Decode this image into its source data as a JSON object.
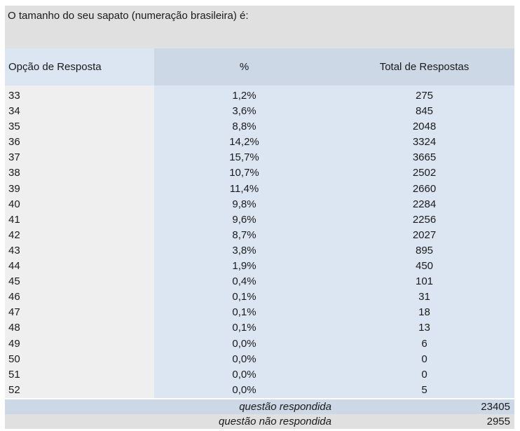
{
  "question": "O tamanho do seu sapato (numeração brasileira) é:",
  "headers": {
    "option": "Opção de Resposta",
    "percent": "%",
    "total": "Total de Respostas"
  },
  "rows": [
    {
      "option": "33",
      "percent": "1,2%",
      "total": "275"
    },
    {
      "option": "34",
      "percent": "3,6%",
      "total": "845"
    },
    {
      "option": "35",
      "percent": "8,8%",
      "total": "2048"
    },
    {
      "option": "36",
      "percent": "14,2%",
      "total": "3324"
    },
    {
      "option": "37",
      "percent": "15,7%",
      "total": "3665"
    },
    {
      "option": "38",
      "percent": "10,7%",
      "total": "2502"
    },
    {
      "option": "39",
      "percent": "11,4%",
      "total": "2660"
    },
    {
      "option": "40",
      "percent": "9,8%",
      "total": "2284"
    },
    {
      "option": "41",
      "percent": "9,6%",
      "total": "2256"
    },
    {
      "option": "42",
      "percent": "8,7%",
      "total": "2027"
    },
    {
      "option": "43",
      "percent": "3,8%",
      "total": "895"
    },
    {
      "option": "44",
      "percent": "1,9%",
      "total": "450"
    },
    {
      "option": "45",
      "percent": "0,4%",
      "total": "101"
    },
    {
      "option": "46",
      "percent": "0,1%",
      "total": "31"
    },
    {
      "option": "47",
      "percent": "0,1%",
      "total": "18"
    },
    {
      "option": "48",
      "percent": "0,1%",
      "total": "13"
    },
    {
      "option": "49",
      "percent": "0,0%",
      "total": "6"
    },
    {
      "option": "50",
      "percent": "0,0%",
      "total": "0"
    },
    {
      "option": "51",
      "percent": "0,0%",
      "total": "0"
    },
    {
      "option": "52",
      "percent": "0,0%",
      "total": "5"
    }
  ],
  "footer": {
    "answered_label": "questão respondida",
    "answered_value": "23405",
    "skipped_label": "questão não respondida",
    "skipped_value": "2955"
  },
  "colors": {
    "question_bg": "#e0e0e0",
    "header_bg": "#ccd8e6",
    "light_blue": "#dce6f2",
    "light_gray": "#efefef"
  }
}
